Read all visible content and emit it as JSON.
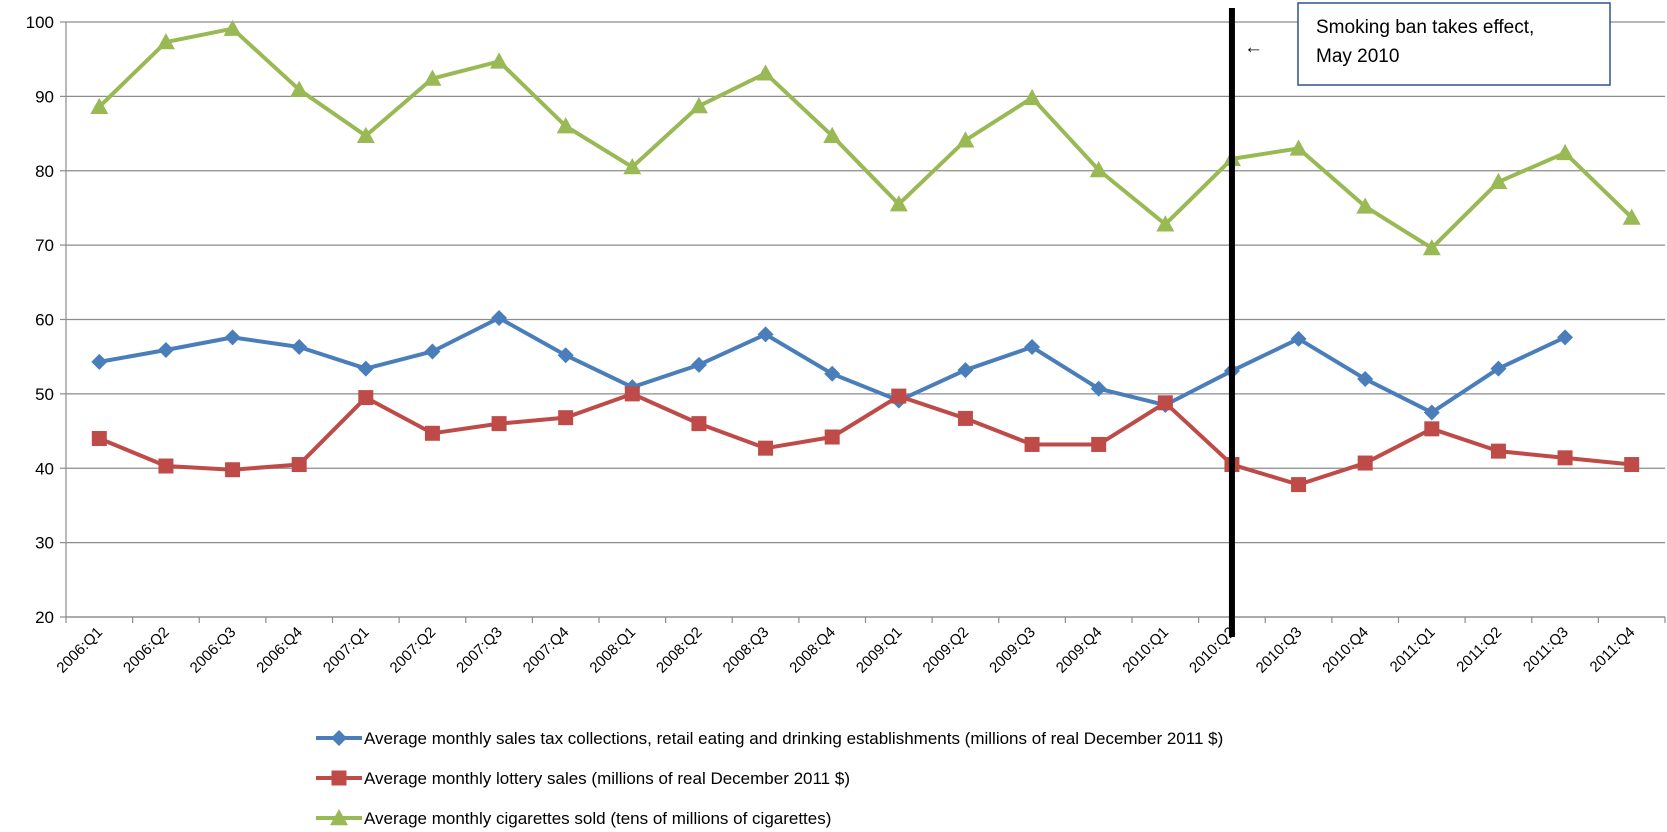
{
  "chart_data": {
    "type": "line",
    "title": "",
    "xlabel": "",
    "ylabel": "",
    "ylim": [
      20,
      100
    ],
    "yticks": [
      20,
      30,
      40,
      50,
      60,
      70,
      80,
      90,
      100
    ],
    "grid": true,
    "legend_position": "bottom",
    "categories": [
      "2006:Q1",
      "2006:Q2",
      "2006:Q3",
      "2006:Q4",
      "2007:Q1",
      "2007:Q2",
      "2007:Q3",
      "2007:Q4",
      "2008:Q1",
      "2008:Q2",
      "2008:Q3",
      "2008:Q4",
      "2009:Q1",
      "2009:Q2",
      "2009:Q3",
      "2009:Q4",
      "2010:Q1",
      "2010:Q2",
      "2010:Q3",
      "2010:Q4",
      "2011:Q1",
      "2011:Q2",
      "2011:Q3",
      "2011:Q4"
    ],
    "series": [
      {
        "name": "Average monthly sales tax collections, retail eating and drinking establishments (millions of real December 2011 $)",
        "color": "#4a7ebb",
        "marker": "diamond",
        "values": [
          54.3,
          55.9,
          57.6,
          56.3,
          53.4,
          55.7,
          60.2,
          55.2,
          50.9,
          53.9,
          58.0,
          52.7,
          49.1,
          53.2,
          56.3,
          50.7,
          48.5,
          53.1,
          57.4,
          52.0,
          47.5,
          53.4,
          57.6,
          null
        ]
      },
      {
        "name": "Average monthly lottery sales (millions of real December 2011 $)",
        "color": "#be4b48",
        "marker": "square",
        "values": [
          44.0,
          40.3,
          39.8,
          40.5,
          49.5,
          44.7,
          46.0,
          46.8,
          50.0,
          46.0,
          42.7,
          44.2,
          49.7,
          46.7,
          43.2,
          43.2,
          48.8,
          40.5,
          37.8,
          40.7,
          45.3,
          42.3,
          41.4,
          40.5
        ]
      },
      {
        "name": "Average monthly cigarettes sold (tens of millions of cigarettes)",
        "color": "#98b954",
        "marker": "triangle",
        "values": [
          88.6,
          97.3,
          99.1,
          90.9,
          84.7,
          92.4,
          94.7,
          86.0,
          80.5,
          88.7,
          93.1,
          84.7,
          75.5,
          84.1,
          89.8,
          80.1,
          72.8,
          81.6,
          83.0,
          75.2,
          69.6,
          78.5,
          82.4,
          73.7
        ]
      }
    ],
    "event_line": {
      "category": "2010:Q2"
    },
    "annotation": {
      "lines": [
        "Smoking ban takes effect,",
        "May 2010"
      ],
      "arrow": "←"
    }
  }
}
